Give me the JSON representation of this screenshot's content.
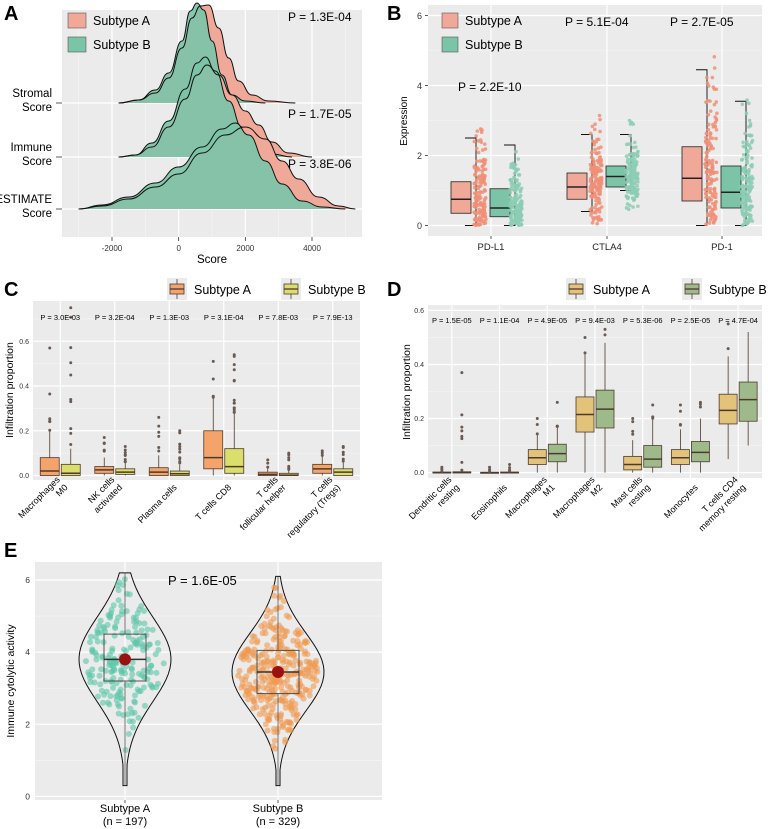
{
  "colors": {
    "panel_bg": "#ebebeb",
    "grid": "#ffffff",
    "salmon": "#f0a898",
    "teal": "#7cc4a8",
    "salmon_dot": "#f08f75",
    "teal_dot": "#8ccdb5",
    "orange": "#f4a46a",
    "yellow": "#d9df6a",
    "dark": "#4d3a2e",
    "tan": "#e3c27a",
    "sage": "#9fba8a",
    "violinA_dot": "#5cc6a8",
    "violinB_dot": "#f09a50",
    "mean": "#9b1010"
  },
  "chart_data": [
    {
      "panel": "A",
      "type": "area",
      "xlabel": "Score",
      "xlim": [
        -3500,
        5500
      ],
      "xticks": [
        -2000,
        0,
        2000,
        4000
      ],
      "legend": [
        "Subtype A",
        "Subtype B"
      ],
      "rows": [
        {
          "label_line1": "Stromal",
          "label_line2": "Score",
          "p": "P = 1.3E-04",
          "A": [
            [
              -1800,
              0
            ],
            [
              -1200,
              0.03
            ],
            [
              -700,
              0.1
            ],
            [
              -300,
              0.25
            ],
            [
              100,
              0.55
            ],
            [
              400,
              0.85
            ],
            [
              650,
              0.97
            ],
            [
              900,
              0.98
            ],
            [
              1200,
              0.75
            ],
            [
              1500,
              0.45
            ],
            [
              1800,
              0.22
            ],
            [
              2200,
              0.08
            ],
            [
              2700,
              0.02
            ],
            [
              3500,
              0
            ]
          ],
          "B": [
            [
              -1800,
              0
            ],
            [
              -1200,
              0.03
            ],
            [
              -700,
              0.13
            ],
            [
              -300,
              0.3
            ],
            [
              100,
              0.62
            ],
            [
              350,
              0.92
            ],
            [
              550,
              1.0
            ],
            [
              750,
              0.93
            ],
            [
              1000,
              0.62
            ],
            [
              1300,
              0.28
            ],
            [
              1600,
              0.08
            ],
            [
              2000,
              0.02
            ],
            [
              2600,
              0
            ]
          ]
        },
        {
          "label_line1": "Immune",
          "label_line2": "Score",
          "p": "P = 1.7E-05",
          "A": [
            [
              -1800,
              0
            ],
            [
              -1300,
              0.02
            ],
            [
              -800,
              0.1
            ],
            [
              -300,
              0.3
            ],
            [
              200,
              0.58
            ],
            [
              550,
              0.82
            ],
            [
              850,
              0.92
            ],
            [
              1200,
              0.82
            ],
            [
              1600,
              0.62
            ],
            [
              2000,
              0.46
            ],
            [
              2400,
              0.32
            ],
            [
              2800,
              0.15
            ],
            [
              3300,
              0.04
            ],
            [
              4000,
              0
            ]
          ],
          "B": [
            [
              -1800,
              0
            ],
            [
              -1300,
              0.02
            ],
            [
              -800,
              0.14
            ],
            [
              -300,
              0.36
            ],
            [
              200,
              0.68
            ],
            [
              550,
              0.94
            ],
            [
              800,
              1.0
            ],
            [
              1100,
              0.86
            ],
            [
              1500,
              0.56
            ],
            [
              1900,
              0.3
            ],
            [
              2300,
              0.12
            ],
            [
              2800,
              0.03
            ],
            [
              3400,
              0
            ]
          ]
        },
        {
          "label_line1": "ESTIMATE",
          "label_line2": "Score",
          "p": "P = 3.8E-06",
          "A": [
            [
              -3000,
              0
            ],
            [
              -2300,
              0.03
            ],
            [
              -1500,
              0.1
            ],
            [
              -700,
              0.22
            ],
            [
              0,
              0.35
            ],
            [
              700,
              0.56
            ],
            [
              1400,
              0.74
            ],
            [
              2000,
              0.82
            ],
            [
              2600,
              0.7
            ],
            [
              3100,
              0.48
            ],
            [
              3600,
              0.3
            ],
            [
              4200,
              0.12
            ],
            [
              4800,
              0.03
            ],
            [
              5300,
              0
            ]
          ],
          "B": [
            [
              -3000,
              0
            ],
            [
              -2300,
              0.04
            ],
            [
              -1500,
              0.12
            ],
            [
              -700,
              0.26
            ],
            [
              0,
              0.42
            ],
            [
              700,
              0.62
            ],
            [
              1300,
              0.8
            ],
            [
              1700,
              0.86
            ],
            [
              2100,
              0.74
            ],
            [
              2600,
              0.48
            ],
            [
              3100,
              0.25
            ],
            [
              3700,
              0.08
            ],
            [
              4300,
              0.02
            ],
            [
              5000,
              0
            ]
          ]
        }
      ]
    },
    {
      "panel": "B",
      "type": "box",
      "ylabel": "Expression",
      "ylim": [
        -0.3,
        6.3
      ],
      "yticks": [
        0,
        2,
        4,
        6
      ],
      "categories": [
        "PD-L1",
        "CTLA4",
        "PD-1"
      ],
      "legend": [
        "Subtype A",
        "Subtype B"
      ],
      "pvalues": [
        "P = 2.2E-10",
        "P = 5.1E-04",
        "P = 2.7E-05"
      ],
      "series": [
        {
          "name": "Subtype A",
          "boxes": [
            {
              "min": 0,
              "q1": 0.35,
              "median": 0.75,
              "q3": 1.25,
              "max": 2.5,
              "spread": 2.8
            },
            {
              "min": 0.4,
              "q1": 0.75,
              "median": 1.1,
              "q3": 1.5,
              "max": 2.6,
              "spread": 3.2
            },
            {
              "min": 0,
              "q1": 0.7,
              "median": 1.35,
              "q3": 2.25,
              "max": 4.45,
              "spread": 5.3
            }
          ]
        },
        {
          "name": "Subtype B",
          "boxes": [
            {
              "min": 0,
              "q1": 0.25,
              "median": 0.5,
              "q3": 1.05,
              "max": 2.3,
              "spread": 2.3
            },
            {
              "min": 1.0,
              "q1": 1.1,
              "median": 1.4,
              "q3": 1.7,
              "max": 2.6,
              "spread": 3.0
            },
            {
              "min": 0,
              "q1": 0.5,
              "median": 0.95,
              "q3": 1.7,
              "max": 3.55,
              "spread": 4.0
            }
          ]
        }
      ]
    },
    {
      "panel": "C",
      "type": "box",
      "ylabel": "Infiltration proportion",
      "ylim": [
        -0.02,
        0.78
      ],
      "yticks": [
        0.0,
        0.2,
        0.4,
        0.6
      ],
      "yminor": [
        0.1,
        0.3,
        0.5,
        0.7
      ],
      "categories": [
        [
          "Macrophages",
          "M0"
        ],
        [
          "NK cells",
          "activated"
        ],
        [
          "Plasma cells"
        ],
        [
          "T cells CD8"
        ],
        [
          "T cells",
          "follicular helper"
        ],
        [
          "T cells",
          "regulatory (Tregs)"
        ]
      ],
      "legend": [
        "Subtype A",
        "Subtype B"
      ],
      "pvalues": [
        "P = 3.0E-03",
        "P = 3.2E-04",
        "P = 1.3E-03",
        "P = 3.1E-04",
        "P = 7.8E-03",
        "P = 7.9E-13"
      ],
      "series": [
        {
          "name": "Subtype A",
          "boxes": [
            {
              "min": 0,
              "q1": 0,
              "median": 0.02,
              "q3": 0.08,
              "max": 0.2,
              "outmax": 0.57,
              "nout": 6
            },
            {
              "min": 0,
              "q1": 0.01,
              "median": 0.025,
              "q3": 0.04,
              "max": 0.08,
              "outmax": 0.17,
              "nout": 5
            },
            {
              "min": 0,
              "q1": 0,
              "median": 0.015,
              "q3": 0.035,
              "max": 0.09,
              "outmax": 0.26,
              "nout": 6
            },
            {
              "min": 0,
              "q1": 0.03,
              "median": 0.08,
              "q3": 0.2,
              "max": 0.35,
              "outmax": 0.51,
              "nout": 4
            },
            {
              "min": 0,
              "q1": 0,
              "median": 0.005,
              "q3": 0.015,
              "max": 0.035,
              "outmax": 0.07,
              "nout": 3
            },
            {
              "min": 0,
              "q1": 0.01,
              "median": 0.03,
              "q3": 0.05,
              "max": 0.09,
              "outmax": 0.11,
              "nout": 3
            }
          ]
        },
        {
          "name": "Subtype B",
          "boxes": [
            {
              "min": 0,
              "q1": 0,
              "median": 0.01,
              "q3": 0.05,
              "max": 0.12,
              "outmax": 0.75,
              "nout": 10
            },
            {
              "min": 0,
              "q1": 0.005,
              "median": 0.015,
              "q3": 0.03,
              "max": 0.06,
              "outmax": 0.13,
              "nout": 8
            },
            {
              "min": 0,
              "q1": 0,
              "median": 0.008,
              "q3": 0.02,
              "max": 0.05,
              "outmax": 0.2,
              "nout": 10
            },
            {
              "min": 0,
              "q1": 0.01,
              "median": 0.04,
              "q3": 0.12,
              "max": 0.28,
              "outmax": 0.54,
              "nout": 14
            },
            {
              "min": 0,
              "q1": 0,
              "median": 0.002,
              "q3": 0.01,
              "max": 0.025,
              "outmax": 0.1,
              "nout": 7
            },
            {
              "min": 0,
              "q1": 0,
              "median": 0.015,
              "q3": 0.03,
              "max": 0.06,
              "outmax": 0.13,
              "nout": 6
            }
          ]
        }
      ]
    },
    {
      "panel": "D",
      "type": "box",
      "ylabel": "Infiltration proportion",
      "ylim": [
        -0.02,
        0.62
      ],
      "yticks": [
        0.0,
        0.2,
        0.4,
        0.6
      ],
      "yminor": [
        0.1,
        0.3,
        0.5
      ],
      "categories": [
        [
          "Dendritic cells",
          "resting"
        ],
        [
          "Eosinophils"
        ],
        [
          "Macrophages",
          "M1"
        ],
        [
          "Macrophages",
          "M2"
        ],
        [
          "Mast cells",
          "resting"
        ],
        [
          "Monocytes"
        ],
        [
          "T cells CD4",
          "memory resting"
        ]
      ],
      "legend": [
        "Subtype A",
        "Subtype B"
      ],
      "pvalues": [
        "P = 1.5E-05",
        "P = 1.1E-04",
        "P = 4.9E-05",
        "P = 9.4E-03",
        "P = 5.3E-06",
        "P = 2.5E-05",
        "P = 4.7E-04"
      ],
      "series": [
        {
          "name": "Subtype A",
          "boxes": [
            {
              "min": 0,
              "q1": 0,
              "median": 0,
              "q3": 0.002,
              "max": 0.005,
              "outmax": 0.02,
              "nout": 3
            },
            {
              "min": 0,
              "q1": 0,
              "median": 0,
              "q3": 0.001,
              "max": 0.003,
              "outmax": 0.02,
              "nout": 3
            },
            {
              "min": 0,
              "q1": 0.03,
              "median": 0.055,
              "q3": 0.085,
              "max": 0.14,
              "outmax": 0.2,
              "nout": 3
            },
            {
              "min": 0,
              "q1": 0.15,
              "median": 0.215,
              "q3": 0.28,
              "max": 0.44,
              "outmax": 0.5,
              "nout": 2
            },
            {
              "min": 0,
              "q1": 0.01,
              "median": 0.03,
              "q3": 0.06,
              "max": 0.12,
              "outmax": 0.2,
              "nout": 4
            },
            {
              "min": 0,
              "q1": 0.03,
              "median": 0.055,
              "q3": 0.085,
              "max": 0.16,
              "outmax": 0.25,
              "nout": 4
            },
            {
              "min": 0.05,
              "q1": 0.18,
              "median": 0.23,
              "q3": 0.29,
              "max": 0.43,
              "outmax": 0.55,
              "nout": 2
            }
          ]
        },
        {
          "name": "Subtype B",
          "boxes": [
            {
              "min": 0,
              "q1": 0,
              "median": 0,
              "q3": 0.003,
              "max": 0.008,
              "outmax": 0.37,
              "nout": 8
            },
            {
              "min": 0,
              "q1": 0,
              "median": 0,
              "q3": 0.002,
              "max": 0.005,
              "outmax": 0.03,
              "nout": 4
            },
            {
              "min": 0,
              "q1": 0.04,
              "median": 0.07,
              "q3": 0.105,
              "max": 0.17,
              "outmax": 0.26,
              "nout": 4
            },
            {
              "min": 0,
              "q1": 0.165,
              "median": 0.235,
              "q3": 0.305,
              "max": 0.48,
              "outmax": 0.53,
              "nout": 2
            },
            {
              "min": 0,
              "q1": 0.02,
              "median": 0.05,
              "q3": 0.1,
              "max": 0.2,
              "outmax": 0.25,
              "nout": 3
            },
            {
              "min": 0,
              "q1": 0.04,
              "median": 0.075,
              "q3": 0.115,
              "max": 0.2,
              "outmax": 0.26,
              "nout": 3
            },
            {
              "min": 0.1,
              "q1": 0.19,
              "median": 0.27,
              "q3": 0.335,
              "max": 0.52,
              "outmax": 0.52,
              "nout": 0
            }
          ]
        }
      ]
    },
    {
      "panel": "E",
      "type": "violin",
      "ylabel": "Immune cytolytic activity",
      "ylim": [
        -0.1,
        6.5
      ],
      "yticks": [
        0,
        2,
        4,
        6
      ],
      "pvalue": "P = 1.6E-05",
      "groups": [
        {
          "name": "Subtype A",
          "n_label": "(n = 197)",
          "min": 0.3,
          "q1": 3.2,
          "median": 3.8,
          "q3": 4.5,
          "max": 6.2,
          "mean": 3.8,
          "n": 197
        },
        {
          "name": "Subtype B",
          "n_label": "(n = 329)",
          "min": 0.3,
          "q1": 2.85,
          "median": 3.45,
          "q3": 4.05,
          "max": 6.1,
          "mean": 3.45,
          "n": 329
        }
      ]
    }
  ]
}
